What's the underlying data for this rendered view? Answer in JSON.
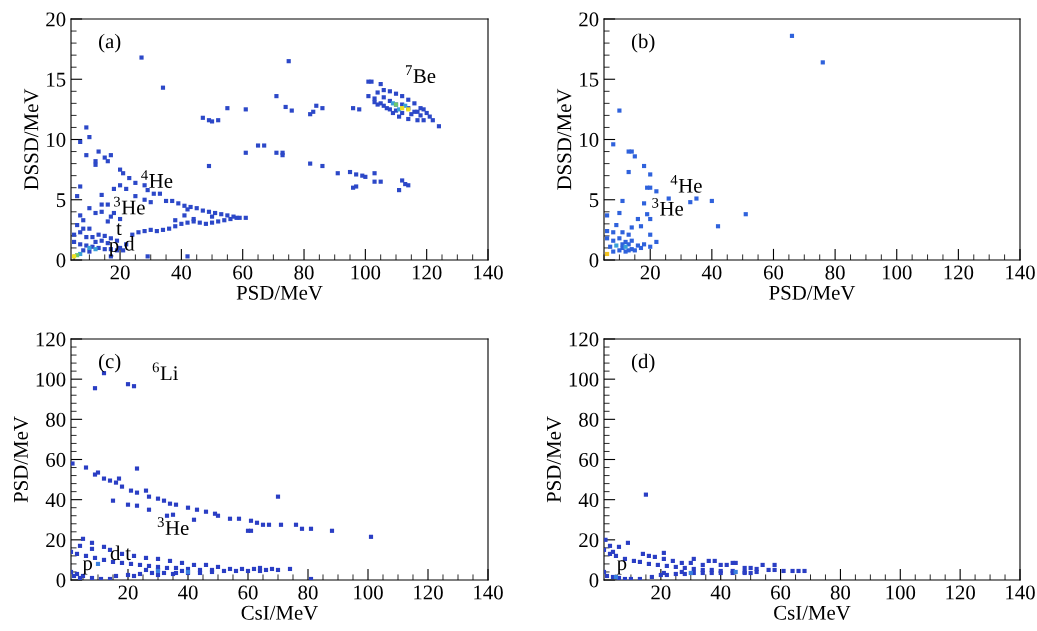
{
  "chart_data": [
    {
      "type": "scatter",
      "xlabel": "PSD/MeV",
      "ylabel": "DSSD/MeV",
      "marker": "square",
      "xlim": [
        4,
        140
      ],
      "ylim": [
        0,
        20
      ],
      "xticks": [
        20,
        40,
        60,
        80,
        100,
        120,
        140
      ],
      "yticks": [
        0,
        5,
        10,
        15,
        20
      ],
      "annotations": [
        "(a)",
        "$^{7}$Be",
        "$^{4}$He",
        "$^{3}$He",
        "t",
        "p",
        "d"
      ],
      "series": [
        {
          "color": "#2c48c8",
          "x": [
            101,
            102,
            105,
            101,
            103,
            104,
            106,
            108,
            110,
            112,
            114,
            116,
            118,
            120,
            121,
            122,
            124,
            105,
            107,
            109,
            111,
            114,
            117,
            119,
            104,
            106,
            108,
            110,
            112,
            114,
            116,
            118,
            106,
            108,
            110,
            112,
            115,
            117,
            119,
            103,
            27,
            34,
            75,
            71,
            55,
            61,
            74,
            76,
            82,
            83,
            84,
            86,
            96,
            98,
            47,
            49,
            50,
            52,
            65,
            67,
            61,
            71,
            73,
            73,
            49,
            82,
            86,
            91,
            95,
            97,
            99,
            100,
            103,
            103,
            105,
            97,
            96,
            111,
            112,
            113,
            114,
            20,
            21,
            23,
            25,
            28,
            29,
            31,
            33,
            35,
            37,
            39,
            41,
            43,
            45,
            47,
            49,
            51,
            53,
            55,
            57,
            59,
            61,
            24,
            26,
            28,
            30,
            32,
            34,
            36,
            38,
            40,
            42,
            44,
            46,
            48,
            50,
            52,
            54,
            56,
            58,
            38,
            41,
            44,
            50,
            42,
            9,
            10,
            7,
            9,
            13,
            12,
            12,
            15,
            16,
            17,
            7,
            6,
            14,
            18,
            20,
            22,
            25,
            28,
            30,
            14,
            16,
            10,
            12,
            14,
            7,
            8,
            16,
            17,
            18,
            20,
            6,
            8,
            10,
            5,
            7,
            9,
            11,
            13,
            15,
            17,
            19,
            5,
            7,
            9,
            11,
            13,
            15,
            17,
            19,
            21,
            8,
            10,
            17,
            29,
            42,
            12,
            14,
            16,
            22,
            20
          ],
          "values": [
            14.8,
            14.8,
            14.6,
            13.6,
            13.4,
            13.9,
            14.1,
            14.0,
            13.8,
            13.6,
            13.3,
            13.0,
            12.6,
            12.2,
            11.9,
            11.6,
            11.1,
            13.0,
            12.6,
            12.2,
            11.9,
            11.7,
            11.6,
            11.6,
            12.9,
            13.5,
            13.2,
            12.9,
            12.9,
            12.6,
            12.3,
            12.0,
            12.8,
            12.5,
            12.4,
            12.2,
            12.1,
            12.3,
            12.5,
            13.1,
            16.8,
            14.3,
            16.5,
            13.6,
            12.6,
            12.5,
            12.7,
            12.4,
            12.1,
            12.3,
            12.8,
            12.6,
            12.6,
            12.5,
            11.8,
            11.6,
            11.5,
            11.6,
            9.5,
            9.5,
            8.9,
            8.9,
            8.9,
            8.7,
            7.8,
            8.0,
            7.8,
            7.2,
            7.3,
            7.1,
            7.0,
            6.9,
            7.2,
            6.5,
            6.5,
            6.1,
            6.0,
            5.8,
            6.6,
            6.3,
            6.2,
            7.5,
            7.2,
            6.8,
            6.4,
            6.2,
            5.8,
            5.5,
            5.5,
            4.9,
            4.9,
            4.7,
            4.5,
            4.4,
            4.3,
            4.1,
            4.0,
            3.9,
            3.8,
            3.7,
            3.6,
            3.5,
            3.5,
            2.1,
            2.3,
            2.4,
            2.5,
            2.4,
            2.5,
            2.6,
            2.8,
            3.0,
            3.1,
            3.2,
            3.1,
            3.0,
            3.1,
            3.2,
            3.3,
            3.4,
            3.5,
            3.3,
            3.7,
            3.4,
            3.6,
            4.2,
            11.0,
            10.2,
            9.8,
            8.7,
            9.0,
            8.2,
            7.9,
            8.5,
            8.2,
            8.7,
            6.1,
            5.3,
            5.4,
            5.9,
            6.2,
            5.9,
            5.3,
            5.0,
            4.8,
            4.6,
            4.6,
            4.3,
            3.9,
            4.0,
            3.7,
            3.3,
            3.2,
            3.6,
            3.9,
            3.4,
            2.9,
            2.6,
            2.6,
            2.1,
            2.3,
            1.9,
            1.9,
            2.1,
            2.0,
            1.8,
            1.6,
            1.5,
            1.3,
            1.2,
            1.1,
            1.0,
            0.9,
            0.9,
            0.8,
            0.8,
            0.8,
            0.7,
            0.3,
            0.3,
            0.3,
            1.5,
            1.6,
            1.4,
            1.3,
            1.0
          ]
        },
        {
          "color": "#3aa0d8",
          "x": [
            109,
            113,
            111,
            7,
            10,
            12
          ],
          "values": [
            13.0,
            12.8,
            12.5,
            0.5,
            1.0,
            0.9
          ]
        },
        {
          "color": "#6cc870",
          "x": [
            110,
            6
          ],
          "values": [
            12.9,
            0.4
          ]
        },
        {
          "color": "#f0e020",
          "x": [
            112,
            114,
            5
          ],
          "values": [
            12.6,
            12.5,
            0.3
          ]
        }
      ]
    },
    {
      "type": "scatter",
      "xlabel": "PSD/MeV",
      "ylabel": "DSSD/MeV",
      "marker": "square",
      "xlim": [
        5,
        140
      ],
      "ylim": [
        0,
        20
      ],
      "xticks": [
        20,
        40,
        60,
        80,
        100,
        120,
        140
      ],
      "yticks": [
        0,
        5,
        10,
        15,
        20
      ],
      "annotations": [
        "(b)",
        "$^{4}$He",
        "$^{3}$He"
      ],
      "series": [
        {
          "color": "#2f62dc",
          "x": [
            66,
            76,
            10,
            8,
            13,
            14,
            15,
            18,
            20,
            13,
            19,
            20,
            22,
            26,
            35,
            40,
            33,
            11,
            18,
            51,
            42,
            10,
            19,
            6,
            16,
            20,
            17,
            14,
            9,
            6,
            8,
            11,
            13,
            20,
            6,
            8,
            10,
            12,
            14,
            16,
            18,
            20,
            22,
            7,
            11,
            13,
            15,
            17,
            8,
            10,
            12,
            14,
            11,
            13
          ],
          "values": [
            18.6,
            16.4,
            12.4,
            9.6,
            9.0,
            9.0,
            8.6,
            7.8,
            7.1,
            7.3,
            6.0,
            6.0,
            5.7,
            5.1,
            5.1,
            4.9,
            4.8,
            4.9,
            4.7,
            3.8,
            2.8,
            3.9,
            3.8,
            3.7,
            3.4,
            3.4,
            2.8,
            2.7,
            2.9,
            2.4,
            2.3,
            2.3,
            2.1,
            2.1,
            1.8,
            1.6,
            1.8,
            1.5,
            1.6,
            1.2,
            1.3,
            1.1,
            1.5,
            1.1,
            1.0,
            0.8,
            0.8,
            1.0,
            0.7,
            0.8,
            0.7,
            0.9,
            1.3,
            1.3
          ]
        },
        {
          "color": "#3aa0d8",
          "x": [
            9,
            12
          ],
          "values": [
            1.2,
            1.1
          ]
        },
        {
          "color": "#f0c020",
          "x": [
            6
          ],
          "values": [
            0.5
          ]
        }
      ]
    },
    {
      "type": "scatter",
      "xlabel": "CsI/MeV",
      "ylabel": "PSD/MeV",
      "marker": "square",
      "xlim": [
        1,
        140
      ],
      "ylim": [
        0,
        120
      ],
      "xticks": [
        20,
        40,
        60,
        80,
        100,
        120,
        140
      ],
      "yticks": [
        0,
        20,
        40,
        60,
        80,
        100,
        120
      ],
      "annotations": [
        "(c)",
        "$^{6}$Li",
        "$^{3}$He",
        "d",
        "t",
        "p"
      ],
      "series": [
        {
          "color": "#2a3ec4",
          "x": [
            12,
            9,
            20,
            22,
            1.5,
            6,
            9,
            10,
            12,
            14,
            16,
            17,
            18,
            23,
            21,
            23,
            26,
            27,
            30,
            32,
            34,
            36,
            15,
            20,
            23,
            27,
            33,
            35,
            42,
            40,
            43,
            46,
            49,
            50,
            54,
            57,
            61,
            63,
            65,
            67,
            71,
            76,
            78,
            81,
            88,
            101,
            60,
            61,
            70,
            5,
            8,
            12,
            4,
            8,
            14,
            18,
            22,
            26,
            30,
            34,
            38,
            42,
            46,
            50,
            54,
            58,
            62,
            66,
            70,
            74,
            68,
            64,
            1,
            3,
            6,
            9,
            12,
            15,
            18,
            21,
            24,
            27,
            30,
            33,
            36,
            40,
            44,
            48,
            52,
            56,
            60,
            64,
            1,
            3,
            5,
            8,
            11,
            14,
            2,
            4,
            16,
            20,
            24,
            28,
            32,
            36,
            40,
            44,
            48,
            22,
            30,
            35,
            81,
            26,
            30,
            38
          ],
          "values": [
            103,
            95.5,
            97.5,
            96.5,
            58,
            56,
            52.5,
            53.5,
            50.5,
            49.5,
            48.5,
            50.5,
            46.5,
            55.5,
            44.5,
            43.5,
            44.5,
            41.5,
            40.5,
            39.5,
            38,
            37.5,
            39.5,
            37.5,
            37,
            35,
            32,
            32.5,
            30,
            36,
            35,
            34,
            33,
            32,
            30.5,
            30.5,
            29.5,
            28.5,
            27.5,
            27.5,
            27.5,
            27.5,
            25.5,
            25.5,
            24.5,
            21.5,
            24.5,
            24.5,
            41.5,
            20.5,
            18.5,
            16.5,
            17,
            15.5,
            15,
            13,
            12,
            11,
            10.5,
            9.5,
            8.5,
            7.5,
            7.5,
            6.5,
            5.5,
            5.5,
            5.5,
            5,
            5,
            5.5,
            5.5,
            6,
            14,
            13,
            12,
            11,
            10,
            9,
            8.5,
            8,
            7.5,
            7,
            6.5,
            6,
            6,
            5.5,
            5,
            5,
            4.5,
            4.5,
            4.5,
            4.5,
            4,
            3,
            2,
            1,
            0.5,
            0.5,
            2,
            1,
            2,
            2.5,
            3,
            3.5,
            3.5,
            3.5,
            3.5,
            3.5,
            4,
            2,
            2.5,
            3,
            0.5,
            5,
            5,
            4.5
          ]
        },
        {
          "color": "#3a80e0",
          "x": [
            10,
            30,
            40
          ],
          "values": [
            8,
            4.5,
            4
          ]
        }
      ]
    },
    {
      "type": "scatter",
      "xlabel": "CsI/MeV",
      "ylabel": "PSD/MeV",
      "marker": "square",
      "xlim": [
        1,
        140
      ],
      "ylim": [
        0,
        120
      ],
      "xticks": [
        20,
        40,
        60,
        80,
        100,
        120,
        140
      ],
      "yticks": [
        0,
        20,
        40,
        60,
        80,
        100,
        120
      ],
      "annotations": [
        "(d)",
        "p"
      ],
      "series": [
        {
          "color": "#2a3ec4",
          "x": [
            15,
            1.5,
            3,
            6,
            9,
            1,
            3,
            5,
            4,
            8,
            11,
            13,
            16,
            19,
            22,
            25,
            28,
            31,
            34,
            37,
            40,
            44,
            48,
            52,
            14,
            16,
            18,
            21,
            21,
            24,
            27,
            30,
            31,
            34,
            36,
            38,
            40,
            42,
            44,
            45,
            48,
            50,
            52,
            54,
            58,
            56,
            58,
            61,
            64,
            66,
            68,
            1,
            2,
            4,
            6,
            8,
            10,
            13,
            17,
            20,
            22,
            25,
            28,
            31,
            34,
            37,
            40,
            44,
            48,
            50,
            21,
            27
          ],
          "values": [
            42.5,
            20,
            17,
            16.5,
            18.5,
            15,
            13,
            12,
            14,
            10.5,
            9.5,
            9,
            8,
            7.5,
            7,
            6.5,
            6,
            5.5,
            5,
            5,
            4.5,
            4.5,
            4,
            4,
            13,
            12,
            11.5,
            13.5,
            10.5,
            9.5,
            8.5,
            8.5,
            10.5,
            7.5,
            9.5,
            9.5,
            7.5,
            7.5,
            8.5,
            8.5,
            6,
            6,
            5.5,
            7.5,
            7.5,
            5,
            5,
            4.5,
            4.5,
            4.5,
            4.5,
            4,
            2,
            1.5,
            1,
            0.5,
            0.5,
            0.5,
            1.5,
            2.5,
            2.5,
            3,
            3,
            3.5,
            3.5,
            3.5,
            3.5,
            3.5,
            3.5,
            3.5,
            3.5,
            4
          ]
        },
        {
          "color": "#3a80e0",
          "x": [
            30,
            45,
            5
          ],
          "values": [
            3.5,
            4,
            1.5
          ]
        }
      ]
    }
  ]
}
